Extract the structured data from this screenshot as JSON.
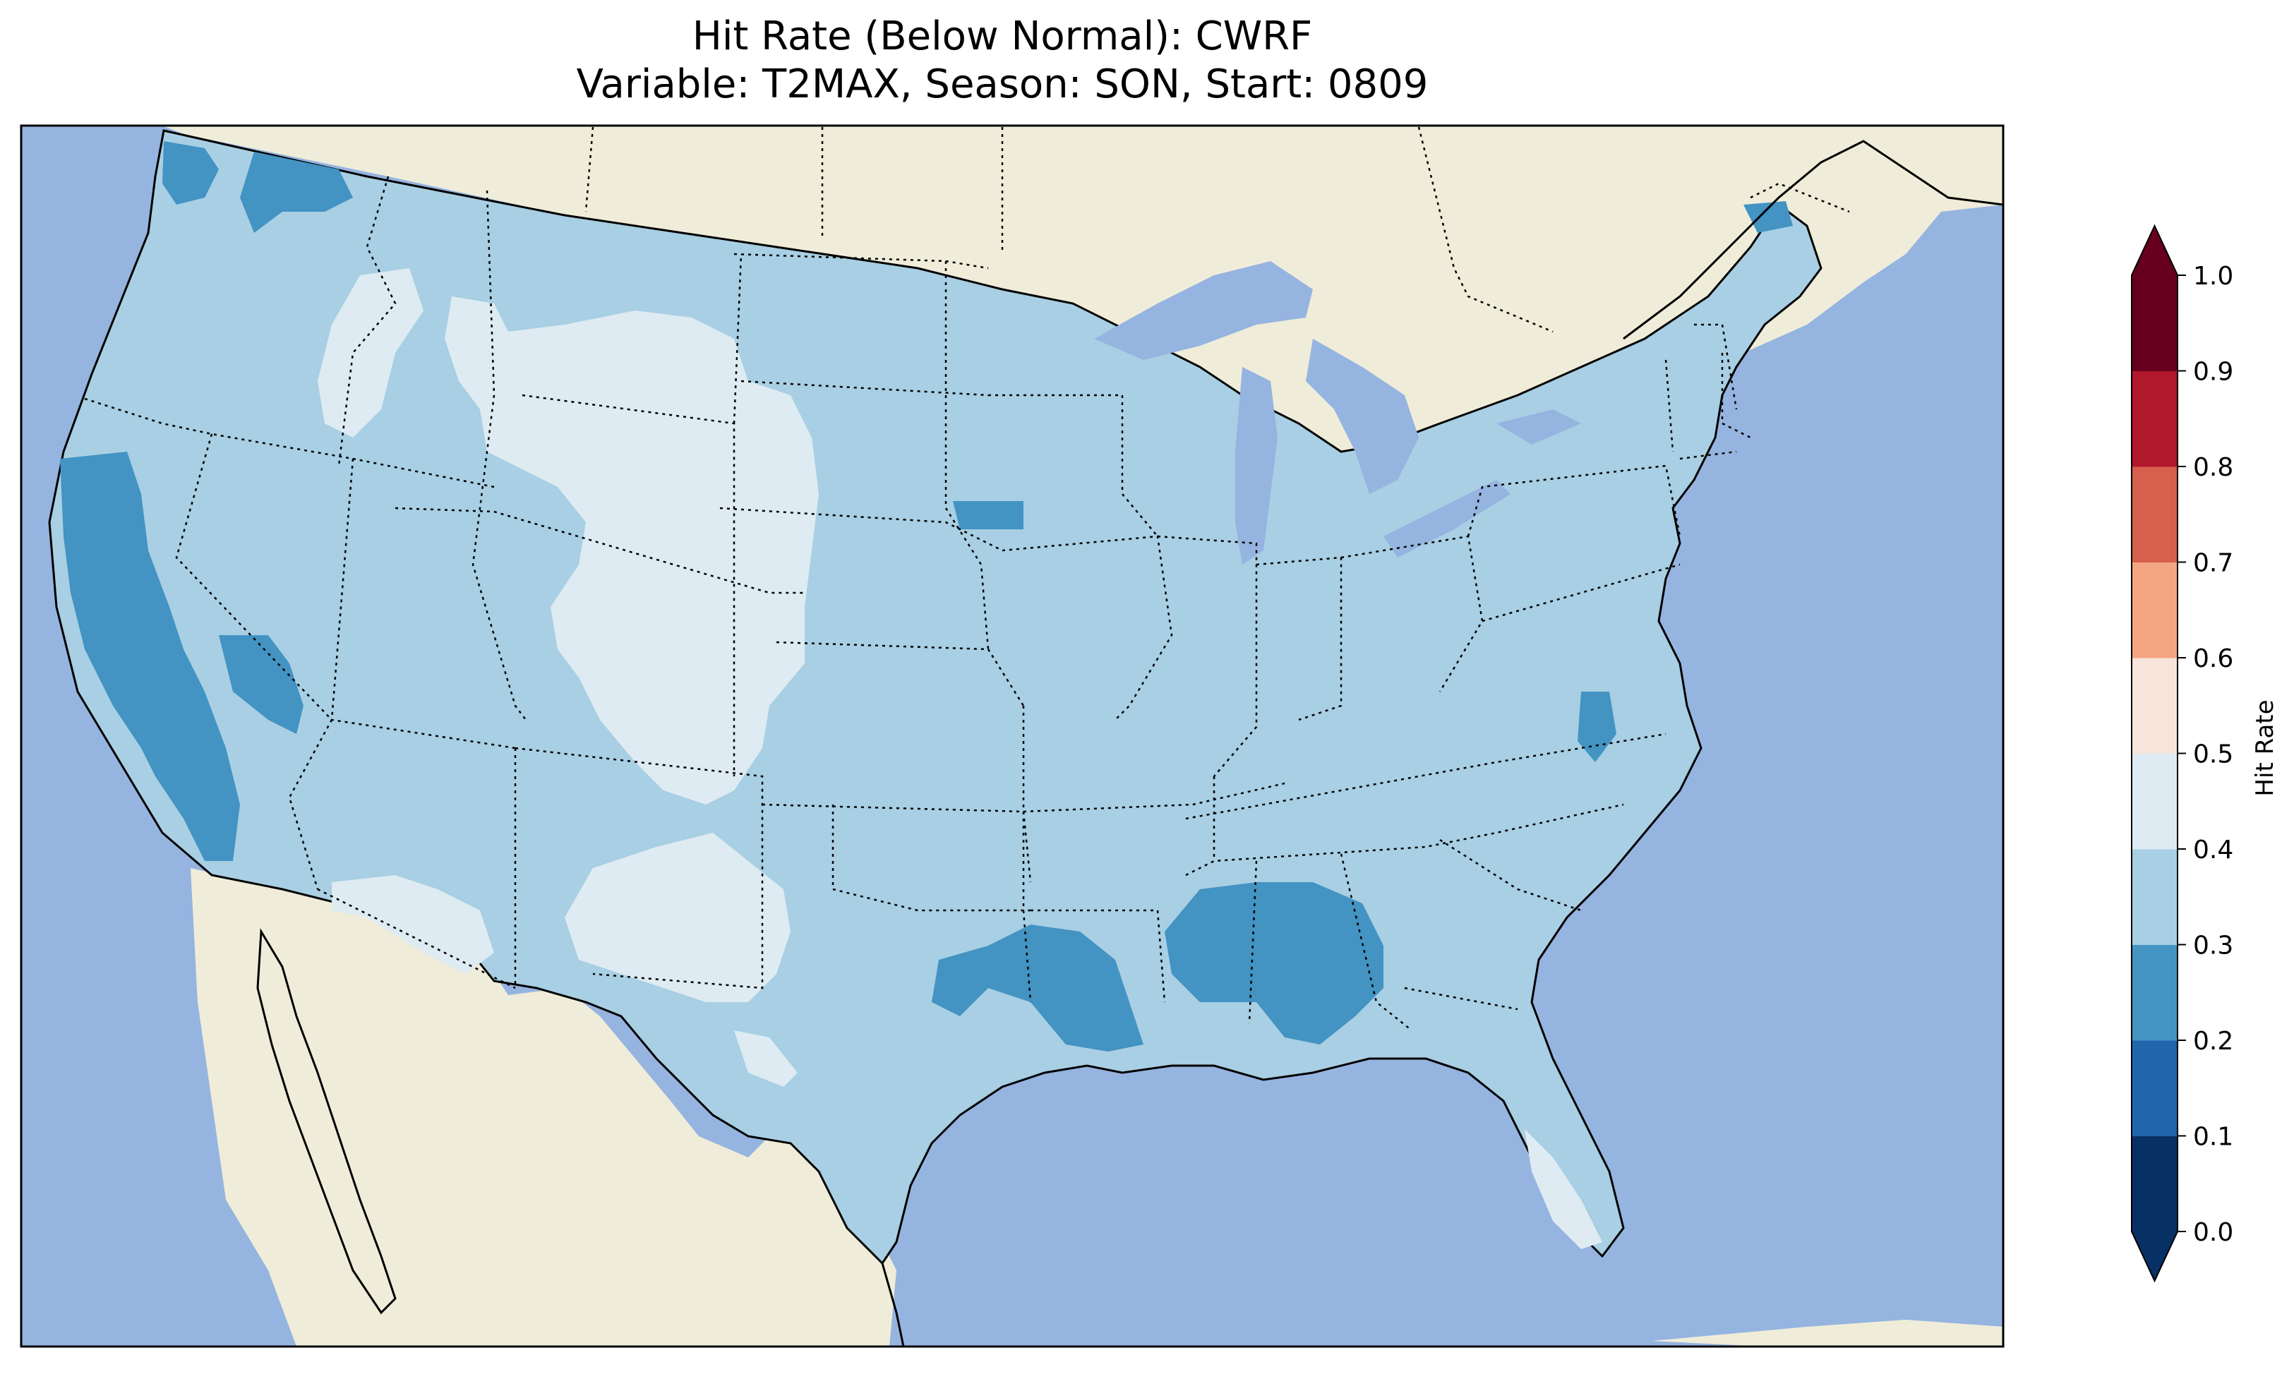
{
  "title": {
    "line1": "Hit Rate (Below Normal): CWRF",
    "line2": "Variable: T2MAX, Season: SON, Start: 0809"
  },
  "map": {
    "ocean_color": "#96b4e0",
    "land_color": "#efedd9",
    "region": "Contiguous United States",
    "dominant_class": "0.3-0.4"
  },
  "colorbar": {
    "label": "Hit Rate",
    "ticks": [
      "0.0",
      "0.1",
      "0.2",
      "0.3",
      "0.4",
      "0.5",
      "0.6",
      "0.7",
      "0.8",
      "0.9",
      "1.0"
    ],
    "bins": [
      {
        "range": "0.0-0.1",
        "color": "#073064"
      },
      {
        "range": "0.1-0.2",
        "color": "#2166ac"
      },
      {
        "range": "0.2-0.3",
        "color": "#4393c3"
      },
      {
        "range": "0.3-0.4",
        "color": "#a8cfe3"
      },
      {
        "range": "0.4-0.5",
        "color": "#deebf2"
      },
      {
        "range": "0.5-0.6",
        "color": "#f7e5dc"
      },
      {
        "range": "0.6-0.7",
        "color": "#f4a582"
      },
      {
        "range": "0.7-0.8",
        "color": "#d6604d"
      },
      {
        "range": "0.8-0.9",
        "color": "#b2182b"
      },
      {
        "range": "0.9-1.0",
        "color": "#67001f"
      }
    ],
    "extend": "both"
  }
}
